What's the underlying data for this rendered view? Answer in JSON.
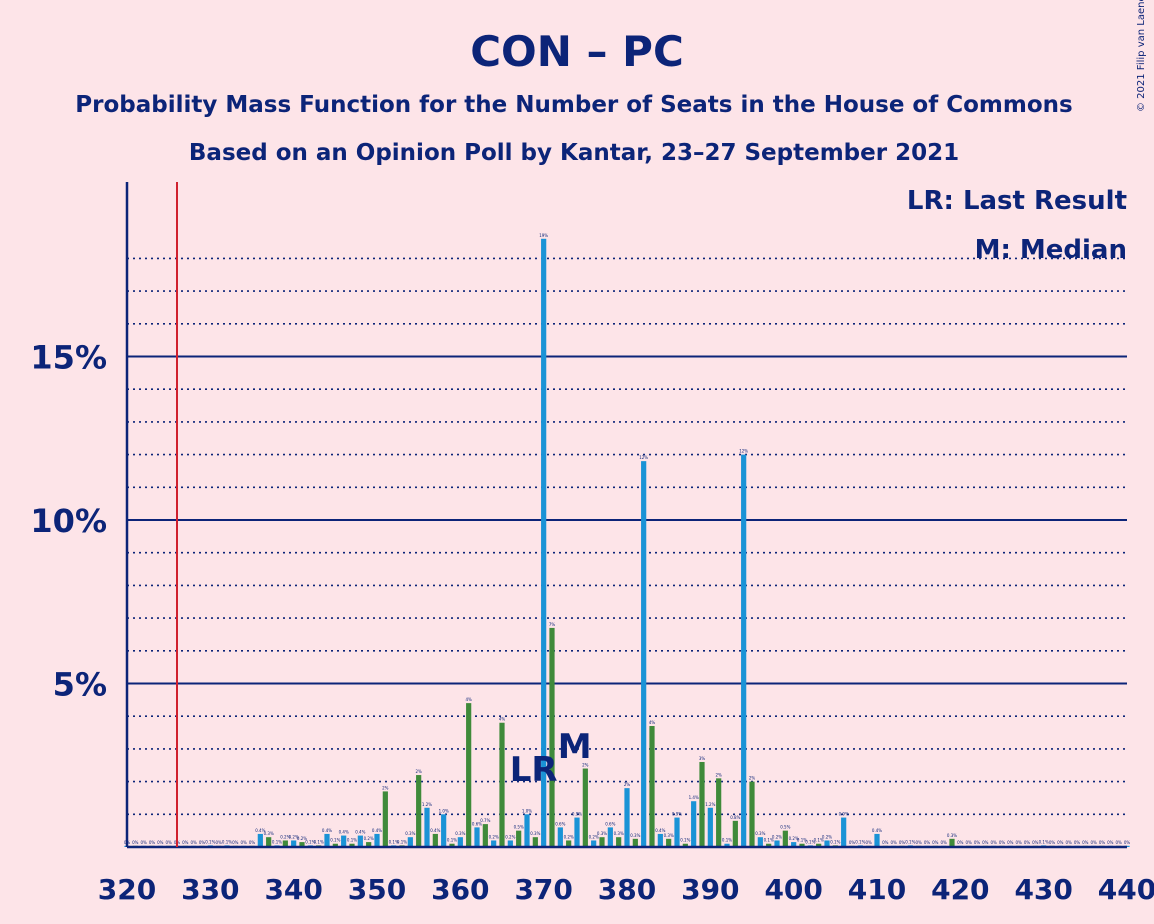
{
  "chart_data": {
    "type": "bar",
    "title": "CON – PC",
    "subtitle": "Probability Mass Function for the Number of Seats in the House of Commons",
    "subtitle2": "Based on an Opinion Poll by Kantar, 23–27 September 2021",
    "copyright": "© 2021 Filip van Laenen",
    "legend": [
      "LR: Last Result",
      "M: Median"
    ],
    "last_result_label": "LR",
    "median_label": "M",
    "last_result_seat": 370,
    "median_seat": 373,
    "majority_line_seat": 326,
    "xlim": [
      320,
      440
    ],
    "ylim": [
      0,
      20
    ],
    "x_ticks": [
      "320",
      "330",
      "340",
      "350",
      "360",
      "370",
      "380",
      "390",
      "400",
      "410",
      "420",
      "430",
      "440"
    ],
    "y_ticks": [
      "5%",
      "10%",
      "15%"
    ],
    "y_tick_values": [
      5,
      10,
      15
    ],
    "dotted_gridlines": [
      1,
      2,
      3,
      4,
      6,
      7,
      8,
      9,
      11,
      12,
      13,
      14,
      16,
      17,
      18
    ],
    "colors": {
      "blue_bar": "#1a93d6",
      "green_bar": "#3f8a3a",
      "axis": "#0c2478",
      "majority_line": "#d0202e",
      "background": "#fde4e8"
    },
    "x": [
      320,
      321,
      322,
      323,
      324,
      325,
      326,
      327,
      328,
      329,
      330,
      331,
      332,
      333,
      334,
      335,
      336,
      337,
      338,
      339,
      340,
      341,
      342,
      343,
      344,
      345,
      346,
      347,
      348,
      349,
      350,
      351,
      352,
      353,
      354,
      355,
      356,
      357,
      358,
      359,
      360,
      361,
      362,
      363,
      364,
      365,
      366,
      367,
      368,
      369,
      370,
      371,
      372,
      373,
      374,
      375,
      376,
      377,
      378,
      379,
      380,
      381,
      382,
      383,
      384,
      385,
      386,
      387,
      388,
      389,
      390,
      391,
      392,
      393,
      394,
      395,
      396,
      397,
      398,
      399,
      400,
      401,
      402,
      403,
      404,
      405,
      406,
      407,
      408,
      409,
      410,
      411,
      412,
      413,
      414,
      415,
      416,
      417,
      418,
      419,
      420,
      421,
      422,
      423,
      424,
      425,
      426,
      427,
      428,
      429,
      430,
      431,
      432,
      433,
      434,
      435,
      436,
      437,
      438,
      439,
      440
    ],
    "values": [
      0,
      0,
      0,
      0,
      0,
      0,
      0,
      0,
      0,
      0,
      0.05,
      0,
      0.05,
      0,
      0,
      0,
      0.4,
      0.3,
      0.05,
      0.2,
      0.2,
      0.15,
      0.05,
      0.05,
      0.4,
      0.1,
      0.35,
      0.1,
      0.35,
      0.15,
      0.4,
      1.7,
      0.05,
      0.05,
      0.3,
      2.2,
      1.2,
      0.4,
      1.0,
      0.1,
      0.3,
      4.4,
      0.6,
      0.7,
      0.2,
      3.8,
      0.2,
      0.5,
      1.0,
      0.3,
      18.6,
      6.7,
      0.6,
      0.2,
      0.9,
      2.4,
      0.2,
      0.3,
      0.6,
      0.3,
      1.8,
      0.25,
      11.8,
      3.7,
      0.4,
      0.25,
      0.9,
      0.1,
      1.4,
      2.6,
      1.2,
      2.1,
      0.1,
      0.8,
      12.0,
      2.0,
      0.3,
      0.1,
      0.2,
      0.5,
      0.15,
      0.1,
      0.05,
      0.1,
      0.2,
      0.05,
      0.9,
      0,
      0.05,
      0,
      0.4,
      0,
      0,
      0,
      0.05,
      0,
      0,
      0,
      0,
      0.25,
      0,
      0,
      0,
      0,
      0,
      0,
      0,
      0,
      0,
      0,
      0.05,
      0,
      0,
      0,
      0,
      0,
      0,
      0,
      0,
      0,
      0
    ],
    "value_labels": [
      "0%",
      "0%",
      "0%",
      "0%",
      "0%",
      "0%",
      "0%",
      "0%",
      "0%",
      "0%",
      "0.1%",
      "0%",
      "0.1%",
      "0%",
      "0%",
      "0%",
      "0.4%",
      "0.3%",
      "0.1%",
      "0.2%",
      "0.2%",
      "0.2%",
      "0.1%",
      "0.1%",
      "0.4%",
      "0.1%",
      "0.4%",
      "0.1%",
      "0.4%",
      "0.2%",
      "0.4%",
      "2%",
      "0.1%",
      "0.1%",
      "0.3%",
      "2%",
      "1.2%",
      "0.4%",
      "1.0%",
      "0.1%",
      "0.3%",
      "4%",
      "0.6%",
      "0.7%",
      "0.2%",
      "4%",
      "0.2%",
      "0.5%",
      "1.0%",
      "0.3%",
      "19%",
      "7%",
      "0.6%",
      "0.2%",
      "0.9%",
      "2%",
      "0.2%",
      "0.3%",
      "0.6%",
      "0.3%",
      "2%",
      "0.3%",
      "12%",
      "4%",
      "0.4%",
      "0.3%",
      "0.9%",
      "0.1%",
      "1.4%",
      "3%",
      "1.2%",
      "2%",
      "0.1%",
      "0.8%",
      "12%",
      "2%",
      "0.3%",
      "0.1%",
      "0.2%",
      "0.5%",
      "0.2%",
      "0.1%",
      "0.1%",
      "0.1%",
      "0.2%",
      "0.1%",
      "0.9%",
      "0%",
      "0.1%",
      "0%",
      "0.4%",
      "0%",
      "0%",
      "0%",
      "0.1%",
      "0%",
      "0%",
      "0%",
      "0%",
      "0.3%",
      "0%",
      "0%",
      "0%",
      "0%",
      "0%",
      "0%",
      "0%",
      "0%",
      "0%",
      "0%",
      "0.1%",
      "0%",
      "0%",
      "0%",
      "0%",
      "0%",
      "0%",
      "0%",
      "0%",
      "0%",
      "0%"
    ]
  }
}
